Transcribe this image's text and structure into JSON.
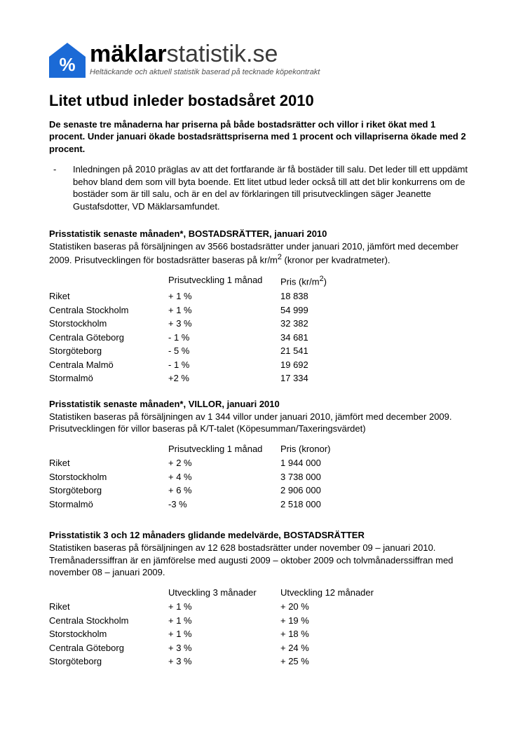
{
  "logo": {
    "bold": "mäklar",
    "light": "statistik",
    "suffix": ".se",
    "tagline": "Heltäckande och aktuell statistik baserad på tecknade köpekontrakt",
    "house_color": "#1b6ad6",
    "percent_color": "#ffffff"
  },
  "title": "Litet utbud inleder bostadsåret 2010",
  "lead": "De senaste tre månaderna har priserna på både bostadsrätter och villor i riket ökat med 1 procent.  Under januari ökade bostadsrättspriserna med 1 procent och villapriserna ökade med 2 procent.",
  "quote": "Inledningen på 2010 präglas av att det fortfarande är få bostäder till salu. Det leder till ett uppdämt behov bland dem som vill byta boende. Ett litet utbud leder också till att det blir konkurrens om de bostäder som är till salu, och är en del av förklaringen till prisutvecklingen säger Jeanette Gustafsdotter, VD Mäklarsamfundet.",
  "table1": {
    "heading": "Prisstatistik senaste månaden*, BOSTADSRÄTTER, januari 2010",
    "desc_line1": "Statistiken baseras på försäljningen av 3566 bostadsrätter under januari 2010, jämfört med december 2009. Prisutvecklingen för bostadsrätter baseras på kr/m",
    "desc_sup": "2",
    "desc_line2": " (kronor per kvadratmeter).",
    "col_change": "Prisutveckling 1 månad",
    "col_price_pre": "Pris (kr/m",
    "col_price_sup": "2",
    "col_price_post": ")",
    "rows": [
      {
        "region": "Riket",
        "change": "+ 1 %",
        "price": "18 838"
      },
      {
        "region": "Centrala Stockholm",
        "change": "+ 1 %",
        "price": "54 999"
      },
      {
        "region": "Storstockholm",
        "change": "+ 3 %",
        "price": "32 382"
      },
      {
        "region": "Centrala Göteborg",
        "change": "- 1 %",
        "price": "34 681"
      },
      {
        "region": "Storgöteborg",
        "change": "-  5 %",
        "price": "21 541"
      },
      {
        "region": "Centrala Malmö",
        "change": "- 1 %",
        "price": "19 692"
      },
      {
        "region": "Stormalmö",
        "change": "+2 %",
        "price": "17 334"
      }
    ]
  },
  "table2": {
    "heading": "Prisstatistik senaste månaden*, VILLOR, januari 2010",
    "desc": "Statistiken baseras på försäljningen av 1 344 villor under januari 2010, jämfört med december 2009. Prisutvecklingen för villor baseras på K/T-talet (Köpesumman/Taxeringsvärdet)",
    "col_change": "Prisutveckling 1 månad",
    "col_price": "Pris (kronor)",
    "rows": [
      {
        "region": "Riket",
        "change": "+ 2 %",
        "price": "1 944 000"
      },
      {
        "region": "Storstockholm",
        "change": "+ 4 %",
        "price": "3 738 000"
      },
      {
        "region": "Storgöteborg",
        "change": "+ 6 %",
        "price": "2 906 000"
      },
      {
        "region": "Stormalmö",
        "change": "-3 %",
        "price": "2 518 000"
      }
    ]
  },
  "table3": {
    "heading": "Prisstatistik 3 och 12 månaders glidande medelvärde, BOSTADSRÄTTER",
    "desc": "Statistiken baseras på försäljningen av 12 628 bostadsrätter under november 09 – januari 2010. Tremånaderssiffran är en jämförelse med augusti 2009 – oktober 2009 och tolvmånaderssiffran med november 08 – januari 2009.",
    "col_dev3": "Utveckling 3 månader",
    "col_dev12": "Utveckling 12 månader",
    "rows": [
      {
        "region": "Riket",
        "dev3": "+ 1 %",
        "dev12": "+ 20 %"
      },
      {
        "region": "Centrala Stockholm",
        "dev3": "+ 1 %",
        "dev12": "+ 19 %"
      },
      {
        "region": "Storstockholm",
        "dev3": "+ 1 %",
        "dev12": "+ 18 %"
      },
      {
        "region": "Centrala Göteborg",
        "dev3": "+ 3 %",
        "dev12": "+ 24 %"
      },
      {
        "region": "Storgöteborg",
        "dev3": "+ 3 %",
        "dev12": "+ 25 %"
      }
    ]
  }
}
